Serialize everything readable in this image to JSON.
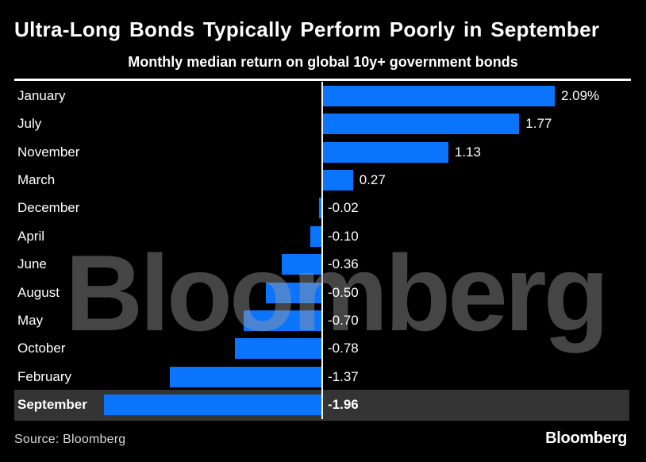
{
  "header": {
    "title": "Ultra-Long Bonds Typically Perform Poorly in September",
    "subtitle": "Monthly median return on global 10y+ government bonds"
  },
  "watermark_text": "Bloomberg",
  "footer": {
    "source": "Source: Bloomberg",
    "logo": "Bloomberg"
  },
  "colors": {
    "background": "#000000",
    "bar": "#0b74fd",
    "highlight_row": "#343434",
    "text": "#ffffff",
    "source_text": "#d9d9d9",
    "zero_line": "#f2f2f2"
  },
  "chart_data": {
    "type": "bar",
    "orientation": "horizontal",
    "title": "Ultra-Long Bonds Typically Perform Poorly in September",
    "subtitle": "Monthly median return on global 10y+ government bonds",
    "unit": "percent",
    "categories": [
      "January",
      "July",
      "November",
      "March",
      "December",
      "April",
      "June",
      "August",
      "May",
      "October",
      "February",
      "September"
    ],
    "values": [
      2.09,
      1.77,
      1.13,
      0.27,
      -0.02,
      -0.1,
      -0.36,
      -0.5,
      -0.7,
      -0.78,
      -1.37,
      -1.96
    ],
    "value_labels": [
      "2.09%",
      "1.77",
      "1.13",
      "0.27",
      "-0.02",
      "-0.10",
      "-0.36",
      "-0.50",
      "-0.70",
      "-0.78",
      "-1.37",
      "-1.96"
    ],
    "highlighted_category": "September",
    "xlim": [
      -1.96,
      2.09
    ],
    "grid": false,
    "legend": false,
    "sorted": "descending"
  }
}
